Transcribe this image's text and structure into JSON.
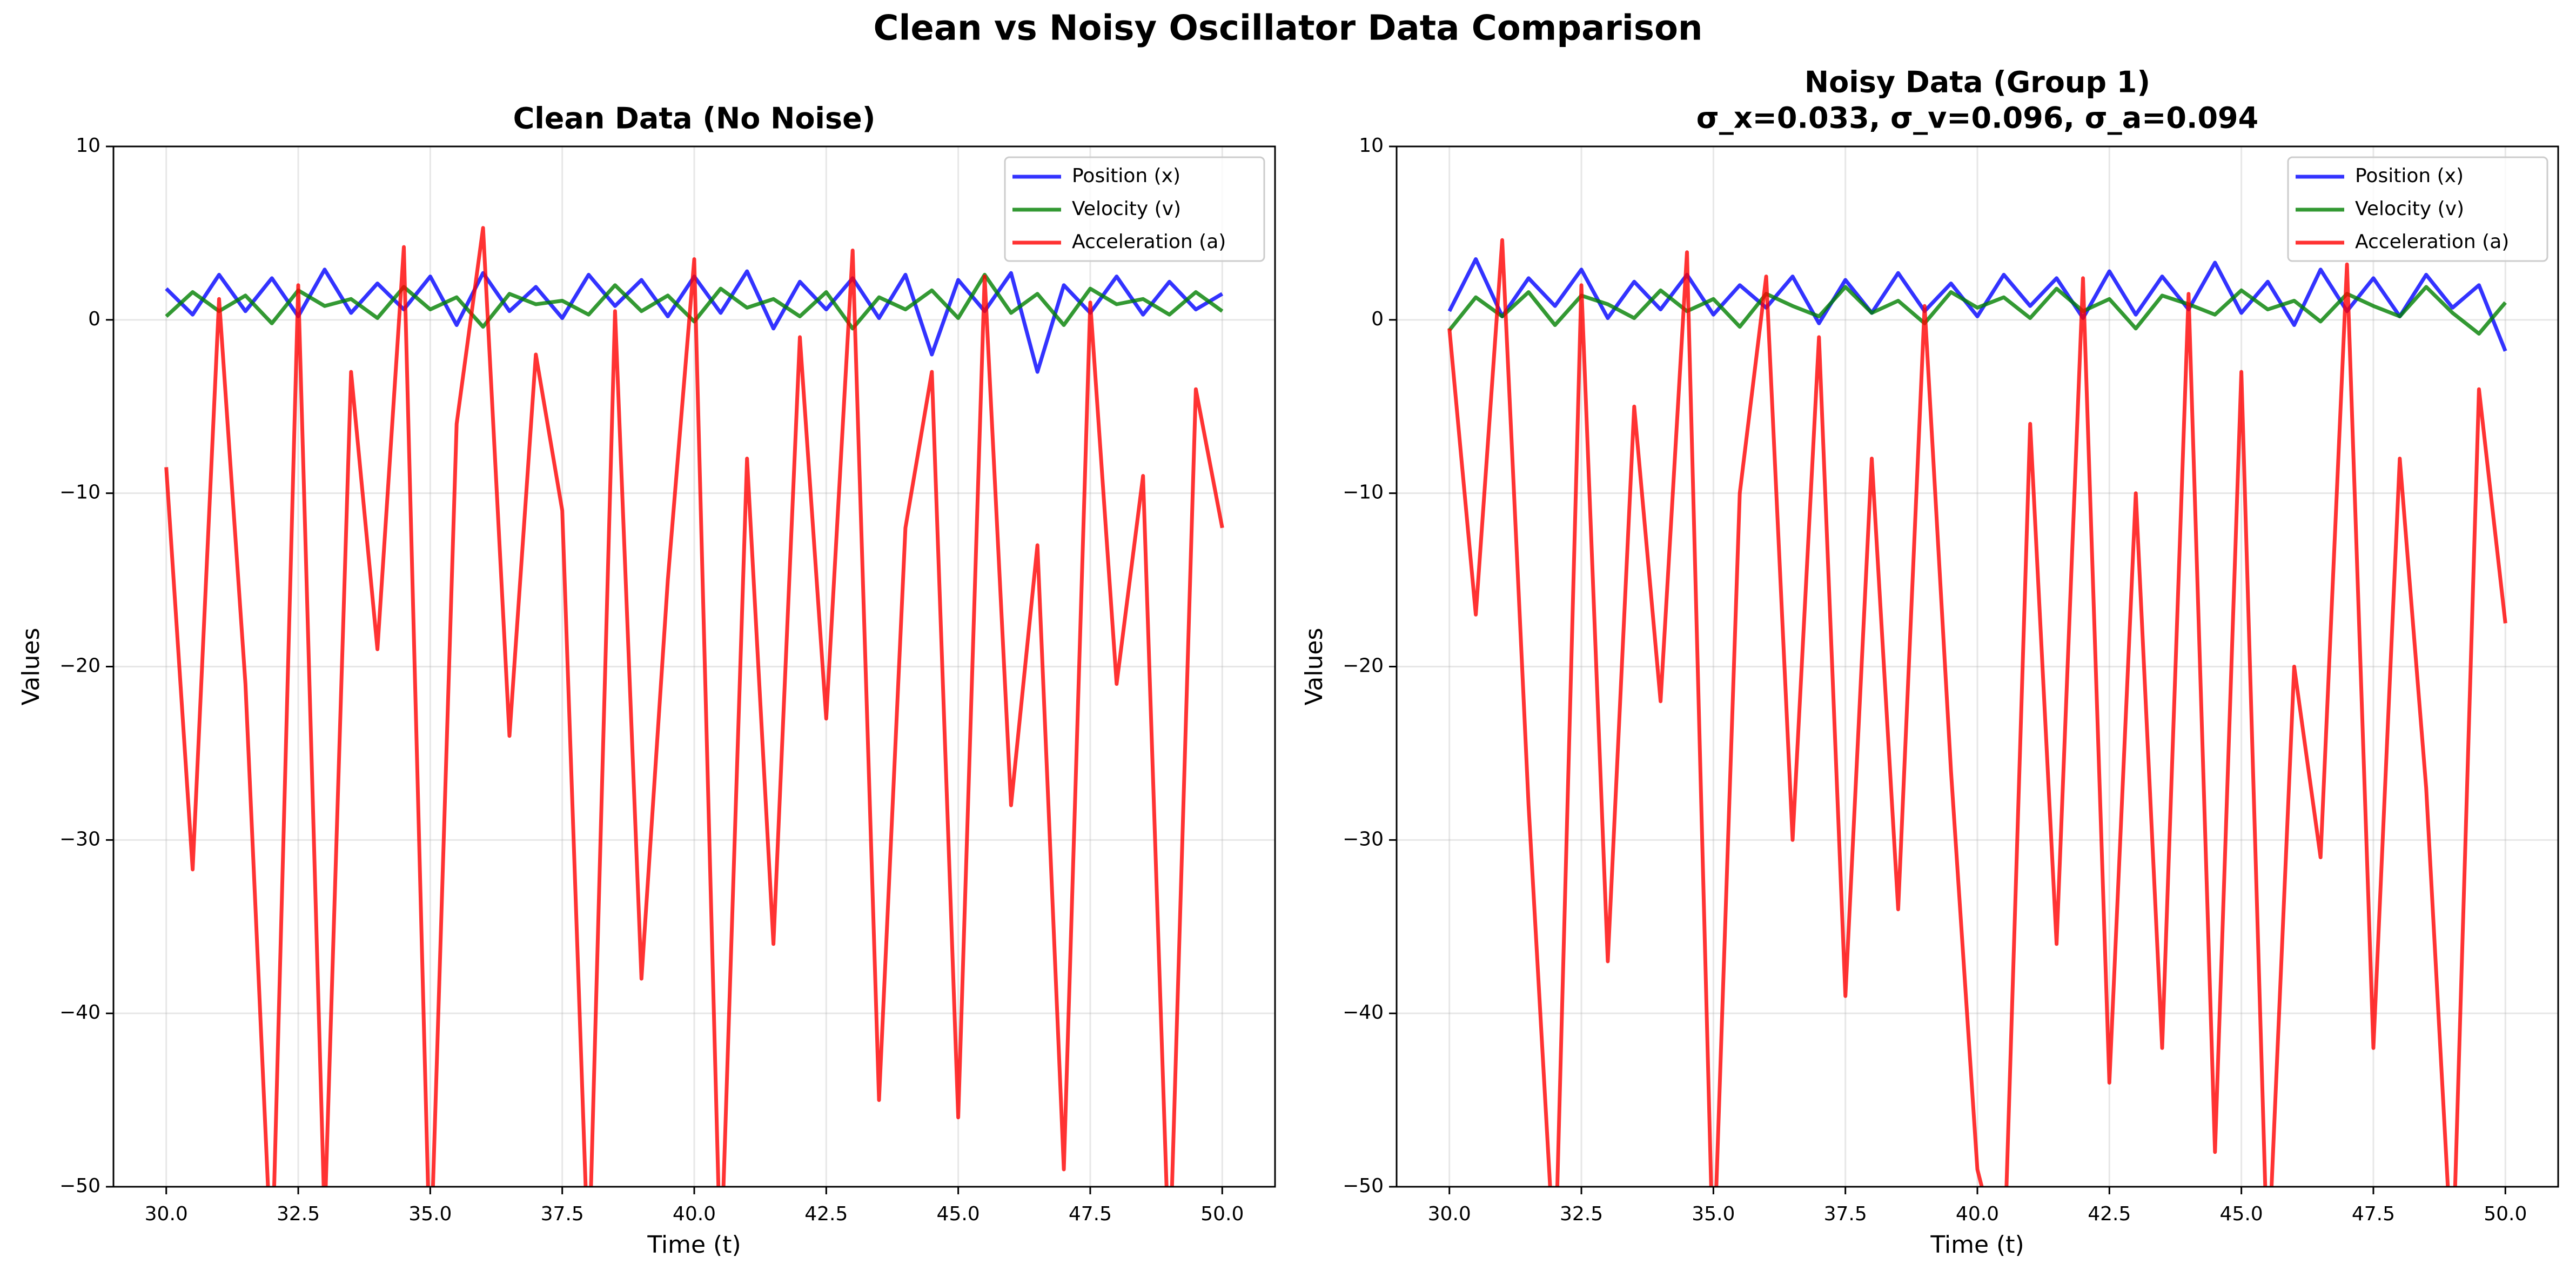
{
  "title": "Clean vs Noisy Oscillator Data Comparison",
  "chart_data": [
    {
      "type": "line",
      "title": "Clean Data (No Noise)",
      "xlabel": "Time (t)",
      "ylabel": "Values",
      "x": [
        30,
        30.5,
        31,
        31.5,
        32,
        32.5,
        33,
        33.5,
        34,
        34.5,
        35,
        35.5,
        36,
        36.5,
        37,
        37.5,
        38,
        38.5,
        39,
        39.5,
        40,
        40.5,
        41,
        41.5,
        42,
        42.5,
        43,
        43.5,
        44,
        44.5,
        45,
        45.5,
        46,
        46.5,
        47,
        47.5,
        48,
        48.5,
        49,
        49.5,
        50
      ],
      "series": [
        {
          "name": "Position (x)",
          "color": "#0000ff",
          "values": [
            1.8,
            0.3,
            2.6,
            0.5,
            2.4,
            0.2,
            2.9,
            0.4,
            2.1,
            0.6,
            2.5,
            -0.3,
            2.7,
            0.5,
            1.9,
            0.1,
            2.6,
            0.8,
            2.3,
            0.2,
            2.5,
            0.4,
            2.8,
            -0.5,
            2.2,
            0.6,
            2.4,
            0.1,
            2.6,
            -2.0,
            2.3,
            0.5,
            2.7,
            -3.0,
            2.0,
            0.4,
            2.5,
            0.3,
            2.2,
            0.6,
            1.5
          ]
        },
        {
          "name": "Velocity (v)",
          "color": "#008000",
          "values": [
            0.2,
            1.6,
            0.5,
            1.4,
            -0.2,
            1.7,
            0.8,
            1.2,
            0.1,
            1.9,
            0.6,
            1.3,
            -0.4,
            1.5,
            0.9,
            1.1,
            0.3,
            2.0,
            0.5,
            1.4,
            -0.1,
            1.8,
            0.7,
            1.2,
            0.2,
            1.6,
            -0.5,
            1.3,
            0.6,
            1.7,
            0.1,
            2.6,
            0.4,
            1.5,
            -0.3,
            1.8,
            0.9,
            1.2,
            0.3,
            1.6,
            0.5
          ]
        },
        {
          "name": "Acceleration (a)",
          "color": "#ff0000",
          "values": [
            -8.5,
            -31.7,
            1.2,
            -21,
            -55,
            2.0,
            -52,
            -3,
            -19,
            4.2,
            -55,
            -6,
            5.3,
            -24,
            -2,
            -11,
            -55,
            0.5,
            -38,
            -15,
            3.5,
            -55,
            -8,
            -36,
            -1,
            -23,
            4.0,
            -45,
            -12,
            -3,
            -46,
            2.5,
            -28,
            -13,
            -49,
            1.0,
            -21,
            -9,
            -55,
            -4,
            -12
          ]
        }
      ],
      "xlim": [
        29,
        51
      ],
      "xticks": [
        {
          "value": 30,
          "label": "30.0"
        },
        {
          "value": 32.5,
          "label": "32.5"
        },
        {
          "value": 35,
          "label": "35.0"
        },
        {
          "value": 37.5,
          "label": "37.5"
        },
        {
          "value": 40,
          "label": "40.0"
        },
        {
          "value": 42.5,
          "label": "42.5"
        },
        {
          "value": 45,
          "label": "45.0"
        },
        {
          "value": 47.5,
          "label": "47.5"
        },
        {
          "value": 50,
          "label": "50.0"
        }
      ],
      "ylim": [
        -50,
        10
      ],
      "yticks": [
        {
          "value": -50,
          "label": "−50"
        },
        {
          "value": -40,
          "label": "−40"
        },
        {
          "value": -30,
          "label": "−30"
        },
        {
          "value": -20,
          "label": "−20"
        },
        {
          "value": -10,
          "label": "−10"
        },
        0,
        10
      ],
      "grid": true,
      "legend": "upper-right"
    },
    {
      "type": "line",
      "title": [
        "Noisy Data (Group 1)",
        "σ_x=0.033, σ_v=0.096, σ_a=0.094"
      ],
      "xlabel": "Time (t)",
      "ylabel": "Values",
      "x": [
        30,
        30.5,
        31,
        31.5,
        32,
        32.5,
        33,
        33.5,
        34,
        34.5,
        35,
        35.5,
        36,
        36.5,
        37,
        37.5,
        38,
        38.5,
        39,
        39.5,
        40,
        40.5,
        41,
        41.5,
        42,
        42.5,
        43,
        43.5,
        44,
        44.5,
        45,
        45.5,
        46,
        46.5,
        47,
        47.5,
        48,
        48.5,
        49,
        49.5,
        50
      ],
      "series": [
        {
          "name": "Position (x)",
          "color": "#0000ff",
          "values": [
            0.5,
            3.5,
            0.2,
            2.4,
            0.8,
            2.9,
            0.1,
            2.2,
            0.6,
            2.6,
            0.3,
            2.0,
            0.7,
            2.5,
            -0.2,
            2.3,
            0.4,
            2.7,
            0.5,
            2.1,
            0.2,
            2.6,
            0.8,
            2.4,
            0.1,
            2.8,
            0.3,
            2.5,
            0.6,
            3.3,
            0.4,
            2.2,
            -0.3,
            2.9,
            0.5,
            2.4,
            0.2,
            2.6,
            0.7,
            2.0,
            -1.8
          ]
        },
        {
          "name": "Velocity (v)",
          "color": "#008000",
          "values": [
            -0.6,
            1.3,
            0.2,
            1.6,
            -0.3,
            1.4,
            0.9,
            0.1,
            1.7,
            0.5,
            1.2,
            -0.4,
            1.5,
            0.8,
            0.2,
            1.9,
            0.4,
            1.1,
            -0.2,
            1.6,
            0.7,
            1.3,
            0.1,
            1.8,
            0.5,
            1.2,
            -0.5,
            1.4,
            0.9,
            0.3,
            1.7,
            0.6,
            1.1,
            -0.1,
            1.5,
            0.8,
            0.2,
            1.9,
            0.4,
            -0.8,
            1.0
          ]
        },
        {
          "name": "Acceleration (a)",
          "color": "#ff0000",
          "values": [
            -0.5,
            -17,
            4.6,
            -28,
            -55,
            2.0,
            -37,
            -5,
            -22,
            3.9,
            -55,
            -10,
            2.5,
            -30,
            -1,
            -39,
            -8,
            -34,
            0.8,
            -26,
            -49,
            -55,
            -6,
            -36,
            2.4,
            -44,
            -10,
            -42,
            1.5,
            -48,
            -3,
            -55,
            -20,
            -31,
            3.2,
            -42,
            -8,
            -27,
            -55,
            -4,
            -17.5
          ]
        }
      ],
      "xlim": [
        29,
        51
      ],
      "xticks": [
        {
          "value": 30,
          "label": "30.0"
        },
        {
          "value": 32.5,
          "label": "32.5"
        },
        {
          "value": 35,
          "label": "35.0"
        },
        {
          "value": 37.5,
          "label": "37.5"
        },
        {
          "value": 40,
          "label": "40.0"
        },
        {
          "value": 42.5,
          "label": "42.5"
        },
        {
          "value": 45,
          "label": "45.0"
        },
        {
          "value": 47.5,
          "label": "47.5"
        },
        {
          "value": 50,
          "label": "50.0"
        }
      ],
      "ylim": [
        -50,
        10
      ],
      "yticks": [
        {
          "value": -50,
          "label": "−50"
        },
        {
          "value": -40,
          "label": "−40"
        },
        {
          "value": -30,
          "label": "−30"
        },
        {
          "value": -20,
          "label": "−20"
        },
        {
          "value": -10,
          "label": "−10"
        },
        0,
        10
      ],
      "grid": true,
      "legend": "upper-right"
    }
  ]
}
